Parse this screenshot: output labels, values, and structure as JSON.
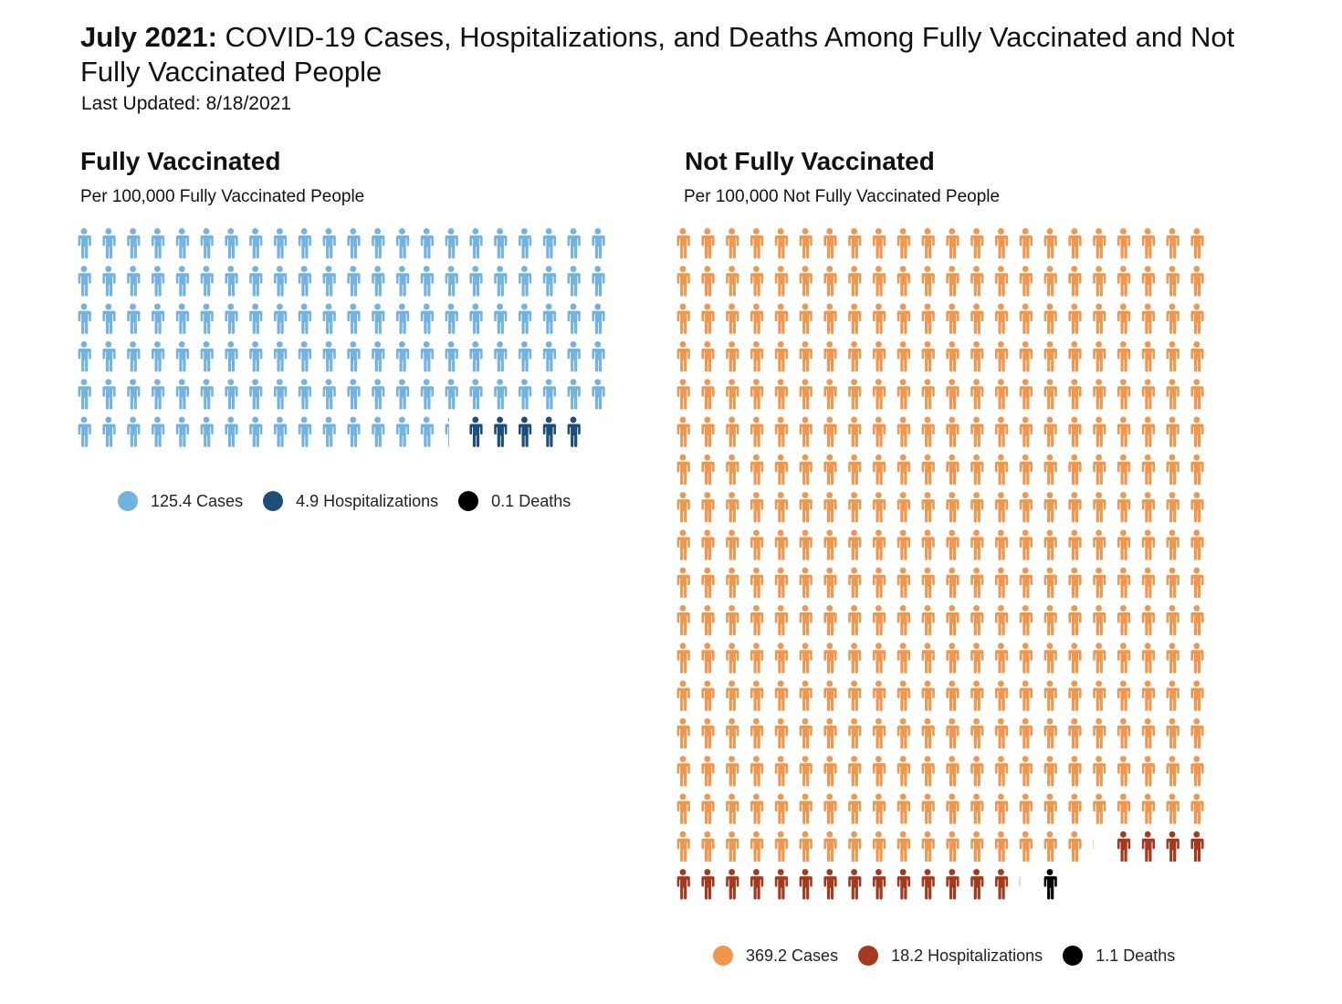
{
  "header": {
    "title_bold": "July 2021:",
    "title_rest": " COVID-19 Cases, Hospitalizations, and Deaths Among Fully Vaccinated and Not Fully Vaccinated People",
    "updated": "Last Updated: 8/18/2021"
  },
  "chart_data": [
    {
      "type": "pictogram",
      "title": "Fully Vaccinated",
      "subtitle": "Per 100,000 Fully Vaccinated People",
      "icons_per_row": 22,
      "categories": [
        {
          "name": "Cases",
          "value": 125.4,
          "color": "#74b3e0",
          "label": "125.4 Cases"
        },
        {
          "name": "Hospitalizations",
          "value": 4.9,
          "color": "#1e4d78",
          "label": "4.9 Hospitalizations"
        },
        {
          "name": "Deaths",
          "value": 0.1,
          "color": "#000000",
          "label": "0.1 Deaths"
        }
      ]
    },
    {
      "type": "pictogram",
      "title": "Not Fully Vaccinated",
      "subtitle": "Per 100,000 Not Fully Vaccinated People",
      "icons_per_row": 22,
      "categories": [
        {
          "name": "Cases",
          "value": 369.2,
          "color": "#f0974f",
          "label": "369.2 Cases"
        },
        {
          "name": "Hospitalizations",
          "value": 18.2,
          "color": "#a33a1e",
          "label": "18.2 Hospitalizations"
        },
        {
          "name": "Deaths",
          "value": 1.1,
          "color": "#000000",
          "label": "1.1 Deaths"
        }
      ]
    }
  ]
}
